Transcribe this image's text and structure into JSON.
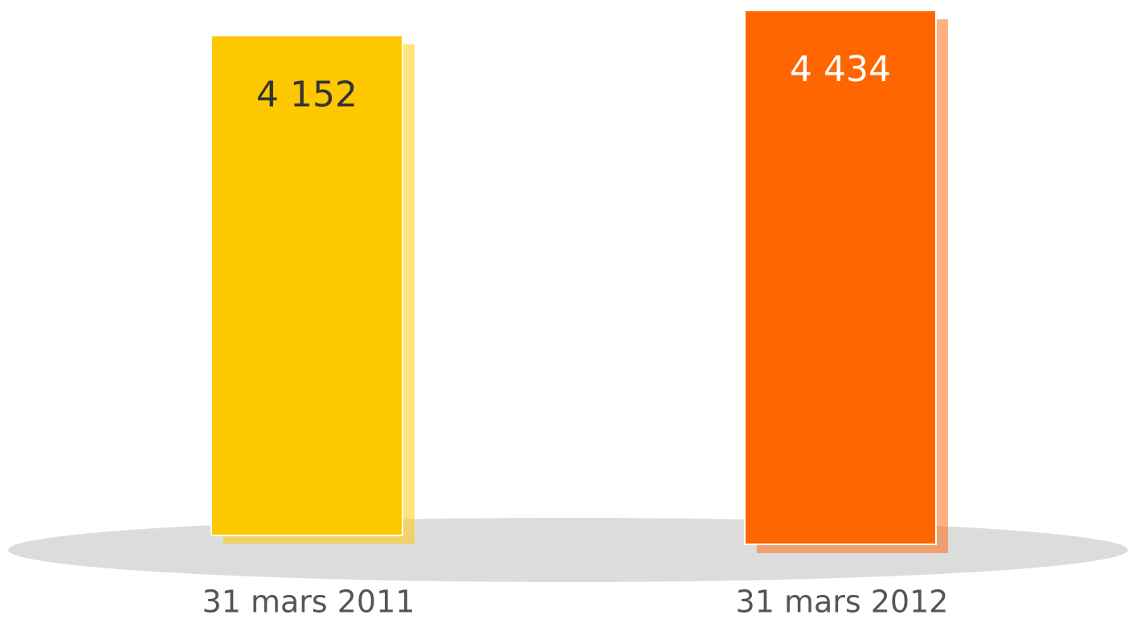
{
  "chart_data": {
    "type": "bar",
    "categories": [
      "31 mars 2011",
      "31 mars 2012"
    ],
    "values": [
      4152,
      4434
    ],
    "value_labels": [
      "4 152",
      "4 434"
    ],
    "colors": [
      "#fdc800",
      "#ff6600"
    ]
  }
}
